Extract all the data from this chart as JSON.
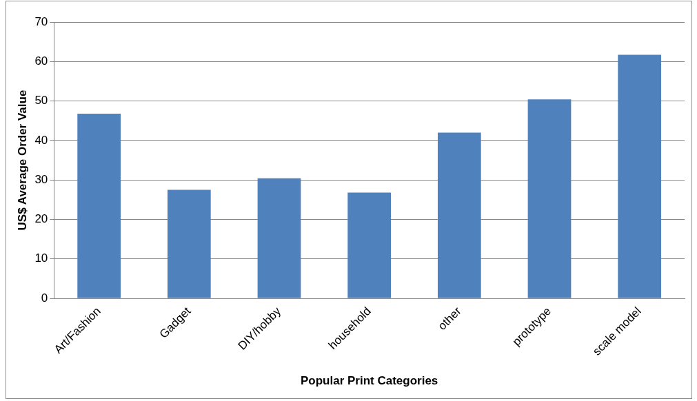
{
  "chart_data": {
    "type": "bar",
    "xlabel": "Popular Print Categories",
    "ylabel": "US$ Average Order Value",
    "categories": [
      "Art/Fashion",
      "Gadget",
      "DIY/hobby",
      "household",
      "other",
      "prototype",
      "scale model"
    ],
    "values": [
      46.8,
      27.5,
      30.4,
      26.8,
      42,
      50.4,
      61.7
    ],
    "color": "#4f81bd",
    "ylim": [
      0,
      70
    ],
    "yticks": [
      0,
      10,
      20,
      30,
      40,
      50,
      60,
      70
    ],
    "grid": "y",
    "legend": false
  }
}
